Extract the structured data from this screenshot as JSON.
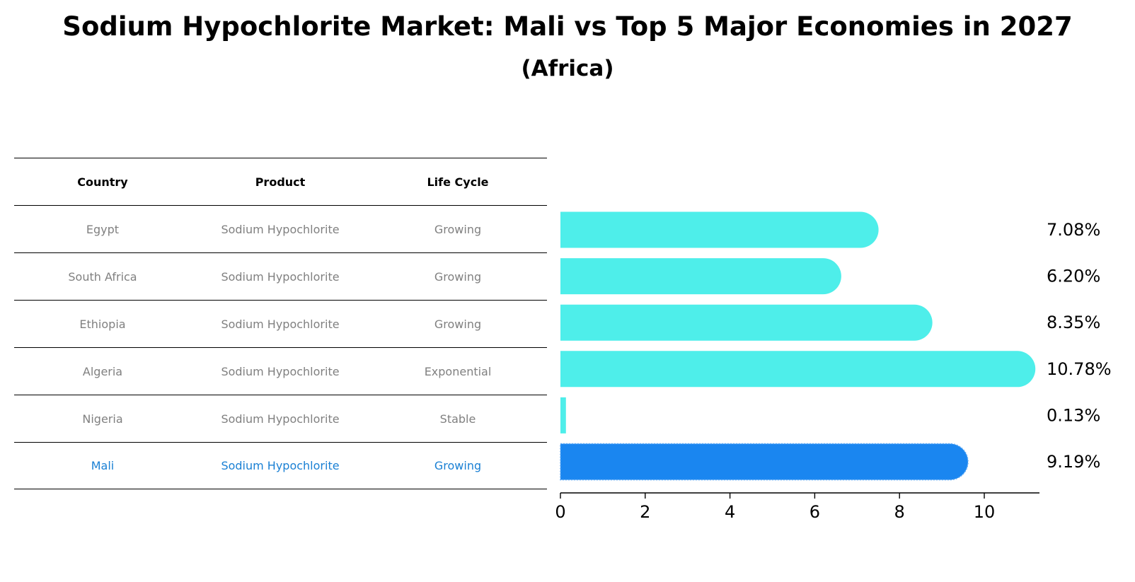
{
  "title": "Sodium Hypochlorite Market: Mali vs Top 5 Major Economies in 2027",
  "subtitle": "(Africa)",
  "table": {
    "headers": [
      "Country",
      "Product",
      "Life Cycle"
    ],
    "rows": [
      [
        "Egypt",
        "Sodium Hypochlorite",
        "Growing"
      ],
      [
        "South Africa",
        "Sodium Hypochlorite",
        "Growing"
      ],
      [
        "Ethiopia",
        "Sodium Hypochlorite",
        "Growing"
      ],
      [
        "Algeria",
        "Sodium Hypochlorite",
        "Exponential"
      ],
      [
        "Nigeria",
        "Sodium Hypochlorite",
        "Stable"
      ],
      [
        "Mali",
        "Sodium Hypochlorite",
        "Growing"
      ]
    ]
  },
  "chart_data": {
    "type": "bar",
    "orientation": "horizontal",
    "title": "Sodium Hypochlorite Market: Mali vs Top 5 Major Economies in 2027",
    "subtitle": "(Africa)",
    "categories": [
      "Egypt",
      "South Africa",
      "Ethiopia",
      "Algeria",
      "Nigeria",
      "Mali"
    ],
    "values": [
      7.08,
      6.2,
      8.35,
      10.78,
      0.13,
      9.19
    ],
    "value_labels": [
      "7.08%",
      "6.20%",
      "8.35%",
      "10.78%",
      "0.13%",
      "9.19%"
    ],
    "highlight": "Mali",
    "xlim": [
      0,
      11.3
    ],
    "xticks": [
      0,
      2,
      4,
      6,
      8,
      10
    ],
    "xlabel": "",
    "ylabel": "",
    "grid": false,
    "colors": {
      "default": "#4eeeea",
      "highlight": "#1a86f0",
      "highlight_text": "#1a80d4",
      "muted_text": "#808080"
    }
  }
}
